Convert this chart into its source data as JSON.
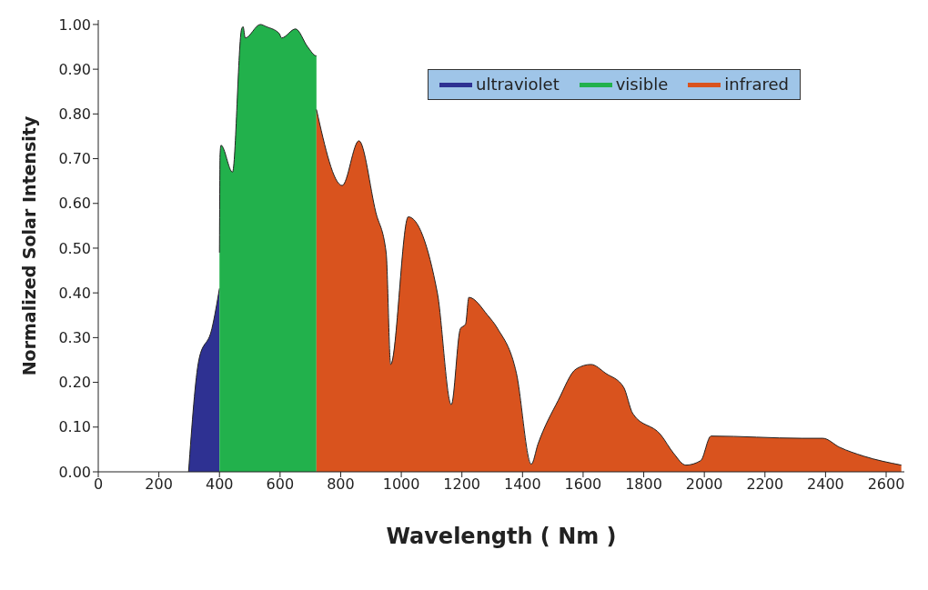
{
  "chart_data": {
    "type": "area",
    "xlabel": "Wavelength ( Nm )",
    "ylabel": "Normalized Solar Intensity",
    "series": [
      {
        "name": "ultraviolet",
        "color": "#2e3192",
        "x": [
          298,
          332,
          375,
          400
        ],
        "values": [
          0,
          0.25,
          0.32,
          0.41
        ]
      },
      {
        "name": "visible",
        "color": "#22b14c",
        "x": [
          400,
          402,
          405,
          443,
          473,
          478,
          485,
          535,
          555,
          597,
          605,
          651,
          691,
          719,
          720
        ],
        "values": [
          0.49,
          0.71,
          0.73,
          0.67,
          0.99,
          0.995,
          0.97,
          1.0,
          0.995,
          0.98,
          0.97,
          0.99,
          0.95,
          0.93,
          0.93
        ]
      },
      {
        "name": "infrared",
        "color": "#d9531e",
        "x": [
          720,
          805,
          860,
          916,
          950,
          965,
          1023,
          1119,
          1165,
          1195,
          1212,
          1223,
          1285,
          1318,
          1380,
          1429,
          1451,
          1518,
          1577,
          1626,
          1675,
          1733,
          1764,
          1856,
          1899,
          1939,
          1988,
          2022,
          2323,
          2391,
          2446,
          2526,
          2650
        ],
        "values": [
          0.81,
          0.64,
          0.74,
          0.58,
          0.49,
          0.24,
          0.57,
          0.4,
          0.15,
          0.32,
          0.33,
          0.39,
          0.35,
          0.32,
          0.22,
          0.017,
          0.062,
          0.16,
          0.23,
          0.24,
          0.22,
          0.19,
          0.13,
          0.083,
          0.041,
          0.015,
          0.025,
          0.08,
          0.075,
          0.075,
          0.055,
          0.035,
          0.015
        ]
      }
    ],
    "xlim": [
      0,
      2660
    ],
    "xticks": [
      0,
      200,
      400,
      600,
      800,
      1000,
      1200,
      1400,
      1600,
      1800,
      2000,
      2200,
      2400,
      2600
    ],
    "ylim": [
      0,
      1.01
    ],
    "yticks": [
      {
        "value": 0,
        "label": "0.00"
      },
      {
        "value": 0.1,
        "label": "0.10"
      },
      {
        "value": 0.2,
        "label": "0.20"
      },
      {
        "value": 0.3,
        "label": "0.30"
      },
      {
        "value": 0.4,
        "label": "0.40"
      },
      {
        "value": 0.5,
        "label": "0.50"
      },
      {
        "value": 0.6,
        "label": "0.60"
      },
      {
        "value": 0.7,
        "label": "0.70"
      },
      {
        "value": 0.8,
        "label": "0.80"
      },
      {
        "value": 0.9,
        "label": "0.90"
      },
      {
        "value": 1,
        "label": "1.00"
      }
    ],
    "legend": "top right",
    "grid": false
  }
}
